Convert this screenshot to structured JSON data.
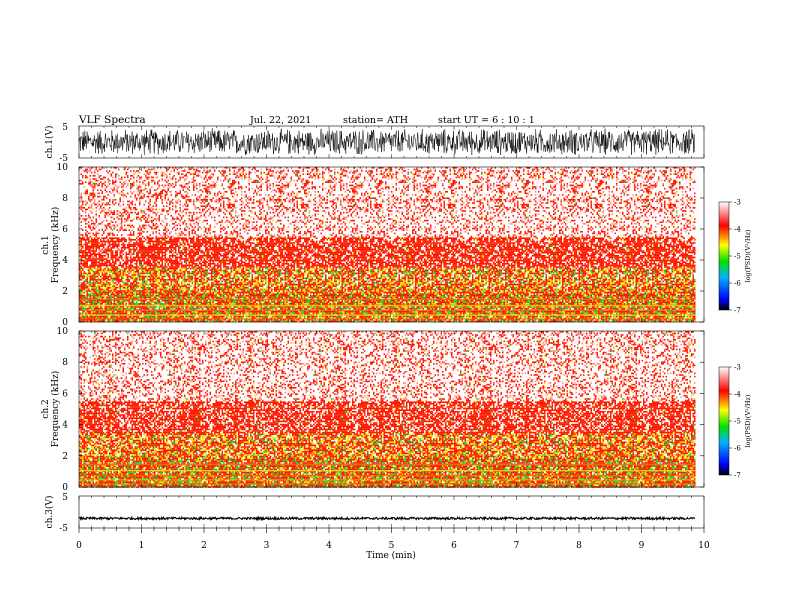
{
  "header": {
    "title": "VLF  Spectra",
    "date": "Jul.  22, 2021",
    "station": "station= ATH",
    "start": "start  UT  =   6  : 10 : 1"
  },
  "chart_data": [
    {
      "type": "line",
      "panel": "ch1-waveform",
      "ylabel": "ch.1(V)",
      "ylim": [
        -5,
        5
      ],
      "yticks": [
        "5",
        "-5"
      ],
      "xlim": [
        0,
        10
      ],
      "series": [
        {
          "values_note": "",
          "x_range_min": [
            0,
            9.85
          ],
          "approx_envelope_V": [
            -4.5,
            4.5
          ]
        }
      ]
    },
    {
      "type": "heatmap",
      "panel": "ch1-spectrogram",
      "ylabel_line1": "ch.1",
      "ylabel_line2": "Frequency  (kHz)",
      "ylim": [
        0,
        10
      ],
      "yticks": [
        "0",
        "2",
        "4",
        "6",
        "8",
        "10"
      ],
      "xlim": [
        0,
        10
      ],
      "data_extent_min": [
        0,
        9.85
      ],
      "colorbar": {
        "label": "log(PSD)(V²/Hz)",
        "range": [
          -7,
          -3
        ],
        "ticks": [
          "-3",
          "-4",
          "-5",
          "-6",
          "-7"
        ]
      }
    },
    {
      "type": "heatmap",
      "panel": "ch2-spectrogram",
      "ylabel_line1": "ch.2",
      "ylabel_line2": "Frequency  (kHz)",
      "ylim": [
        0,
        10
      ],
      "yticks": [
        "0",
        "2",
        "4",
        "6",
        "8",
        "10"
      ],
      "xlim": [
        0,
        10
      ],
      "data_extent_min": [
        0,
        9.85
      ],
      "colorbar": {
        "label": "log(PSD)(V²/Hz)",
        "range": [
          -7,
          -3
        ],
        "ticks": [
          "-3",
          "-4",
          "-5",
          "-6",
          "-7"
        ]
      }
    },
    {
      "type": "line",
      "panel": "ch3-waveform",
      "ylabel": "ch.3(V)",
      "ylim": [
        -5,
        5
      ],
      "yticks": [
        "5",
        "-5"
      ],
      "xlim": [
        0,
        10
      ],
      "series": [
        {
          "approx_level_V": -2.0
        }
      ]
    }
  ],
  "xaxis": {
    "label": "Time  (min)",
    "ticks": [
      "0",
      "1",
      "2",
      "3",
      "4",
      "5",
      "6",
      "7",
      "8",
      "9",
      "10"
    ]
  },
  "colors": {
    "waveform": "#000000",
    "spec_strong": "#ff1a00",
    "spec_mid": "#ffd800",
    "spec_low": "#33cc33",
    "spec_weak": "#ffffff"
  }
}
